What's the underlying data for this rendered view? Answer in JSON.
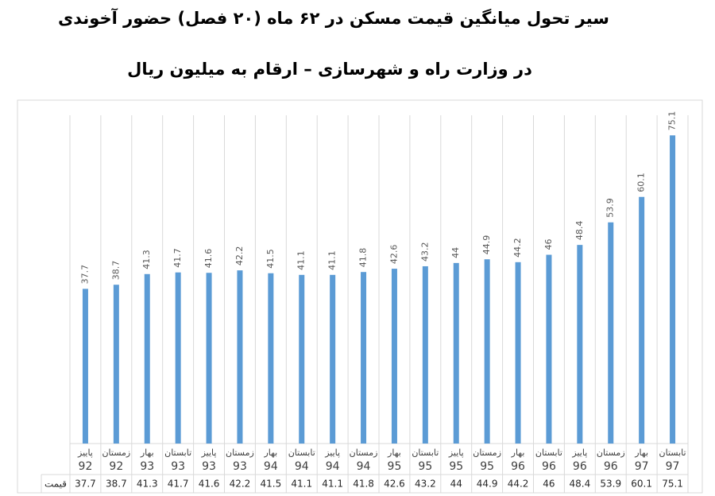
{
  "chart_data": {
    "type": "bar",
    "title": "سیر تحول میانگین قیمت مسکن در ۶۲ ماه (۲۰ فصل) حضور آخوندی",
    "subtitle": "در وزارت راه و شهرسازی – ارقام به میلیون ریال",
    "categories": [
      "پاییز",
      "زمستان",
      "بهار",
      "تابستان",
      "پاییز",
      "زمستان",
      "بهار",
      "تابستان",
      "پاییز",
      "زمستان",
      "بهار",
      "تابستان",
      "پاییز",
      "زمستان",
      "بهار",
      "تابستان",
      "پاییز",
      "زمستان",
      "بهار",
      "تابستان"
    ],
    "years": [
      "92",
      "92",
      "93",
      "93",
      "93",
      "93",
      "94",
      "94",
      "94",
      "94",
      "95",
      "95",
      "95",
      "95",
      "96",
      "96",
      "96",
      "96",
      "97",
      "97"
    ],
    "series": [
      {
        "name": "قیمت",
        "color": "#5b9bd5",
        "values": [
          37.7,
          38.7,
          41.3,
          41.7,
          41.6,
          42.2,
          41.5,
          41.1,
          41.1,
          41.8,
          42.6,
          43.2,
          44,
          44.9,
          44.2,
          46,
          48.4,
          53.9,
          60.1,
          75.1
        ]
      }
    ],
    "ylim": [
      0,
      80
    ],
    "data_table": true
  }
}
